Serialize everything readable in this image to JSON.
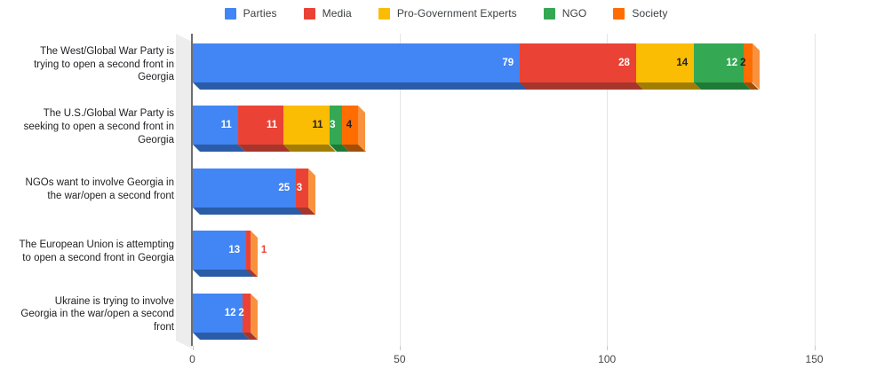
{
  "chart_data": {
    "type": "bar",
    "orientation": "horizontal",
    "stacked": true,
    "style": "3d",
    "title": "",
    "xlabel": "",
    "ylabel": "",
    "grid": true,
    "legend_position": "top",
    "categories": [
      "The West/Global War Party is\ntrying to open a second front in\nGeorgia",
      "The U.S./Global War Party is\nseeking to open a second front in\nGeorgia",
      "NGOs want to involve Georgia in\nthe war/open a second front",
      "The European Union is attempting\nto open a second front in Georgia",
      "Ukraine is trying to involve\nGeorgia in the war/open a second\nfront"
    ],
    "series": [
      {
        "name": "Parties",
        "color": "#4285F4",
        "shade": "#2A5CA8",
        "label_color": "#ffffff",
        "values": [
          79,
          11,
          25,
          13,
          12
        ]
      },
      {
        "name": "Media",
        "color": "#EA4335",
        "shade": "#A6362C",
        "label_color": "#ffffff",
        "values": [
          28,
          11,
          3,
          1,
          2
        ]
      },
      {
        "name": "Pro-Government Experts",
        "color": "#FBBC04",
        "shade": "#A17E03",
        "label_color": "#212121",
        "values": [
          14,
          11,
          0,
          0,
          0
        ]
      },
      {
        "name": "NGO",
        "color": "#34A853",
        "shade": "#1F7A37",
        "label_color": "#ffffff",
        "values": [
          12,
          3,
          0,
          0,
          0
        ]
      },
      {
        "name": "Society",
        "color": "#FF6D01",
        "shade": "#A14F08",
        "label_color": "#212121",
        "values": [
          2,
          4,
          0,
          0,
          0
        ]
      }
    ],
    "totals": [
      135,
      40,
      28,
      14,
      14
    ],
    "x_ticks": [
      "0",
      "50",
      "100",
      "150"
    ],
    "xlim": [
      0,
      168
    ],
    "bar_end_cap_color": "#F8923F",
    "axis_colors": {
      "tick_label": "#464646",
      "gridline": "#e4e4e4",
      "tick_mark": "#c7c7c7",
      "baseline": "#6e6e6e",
      "wall": "#ededed"
    }
  }
}
